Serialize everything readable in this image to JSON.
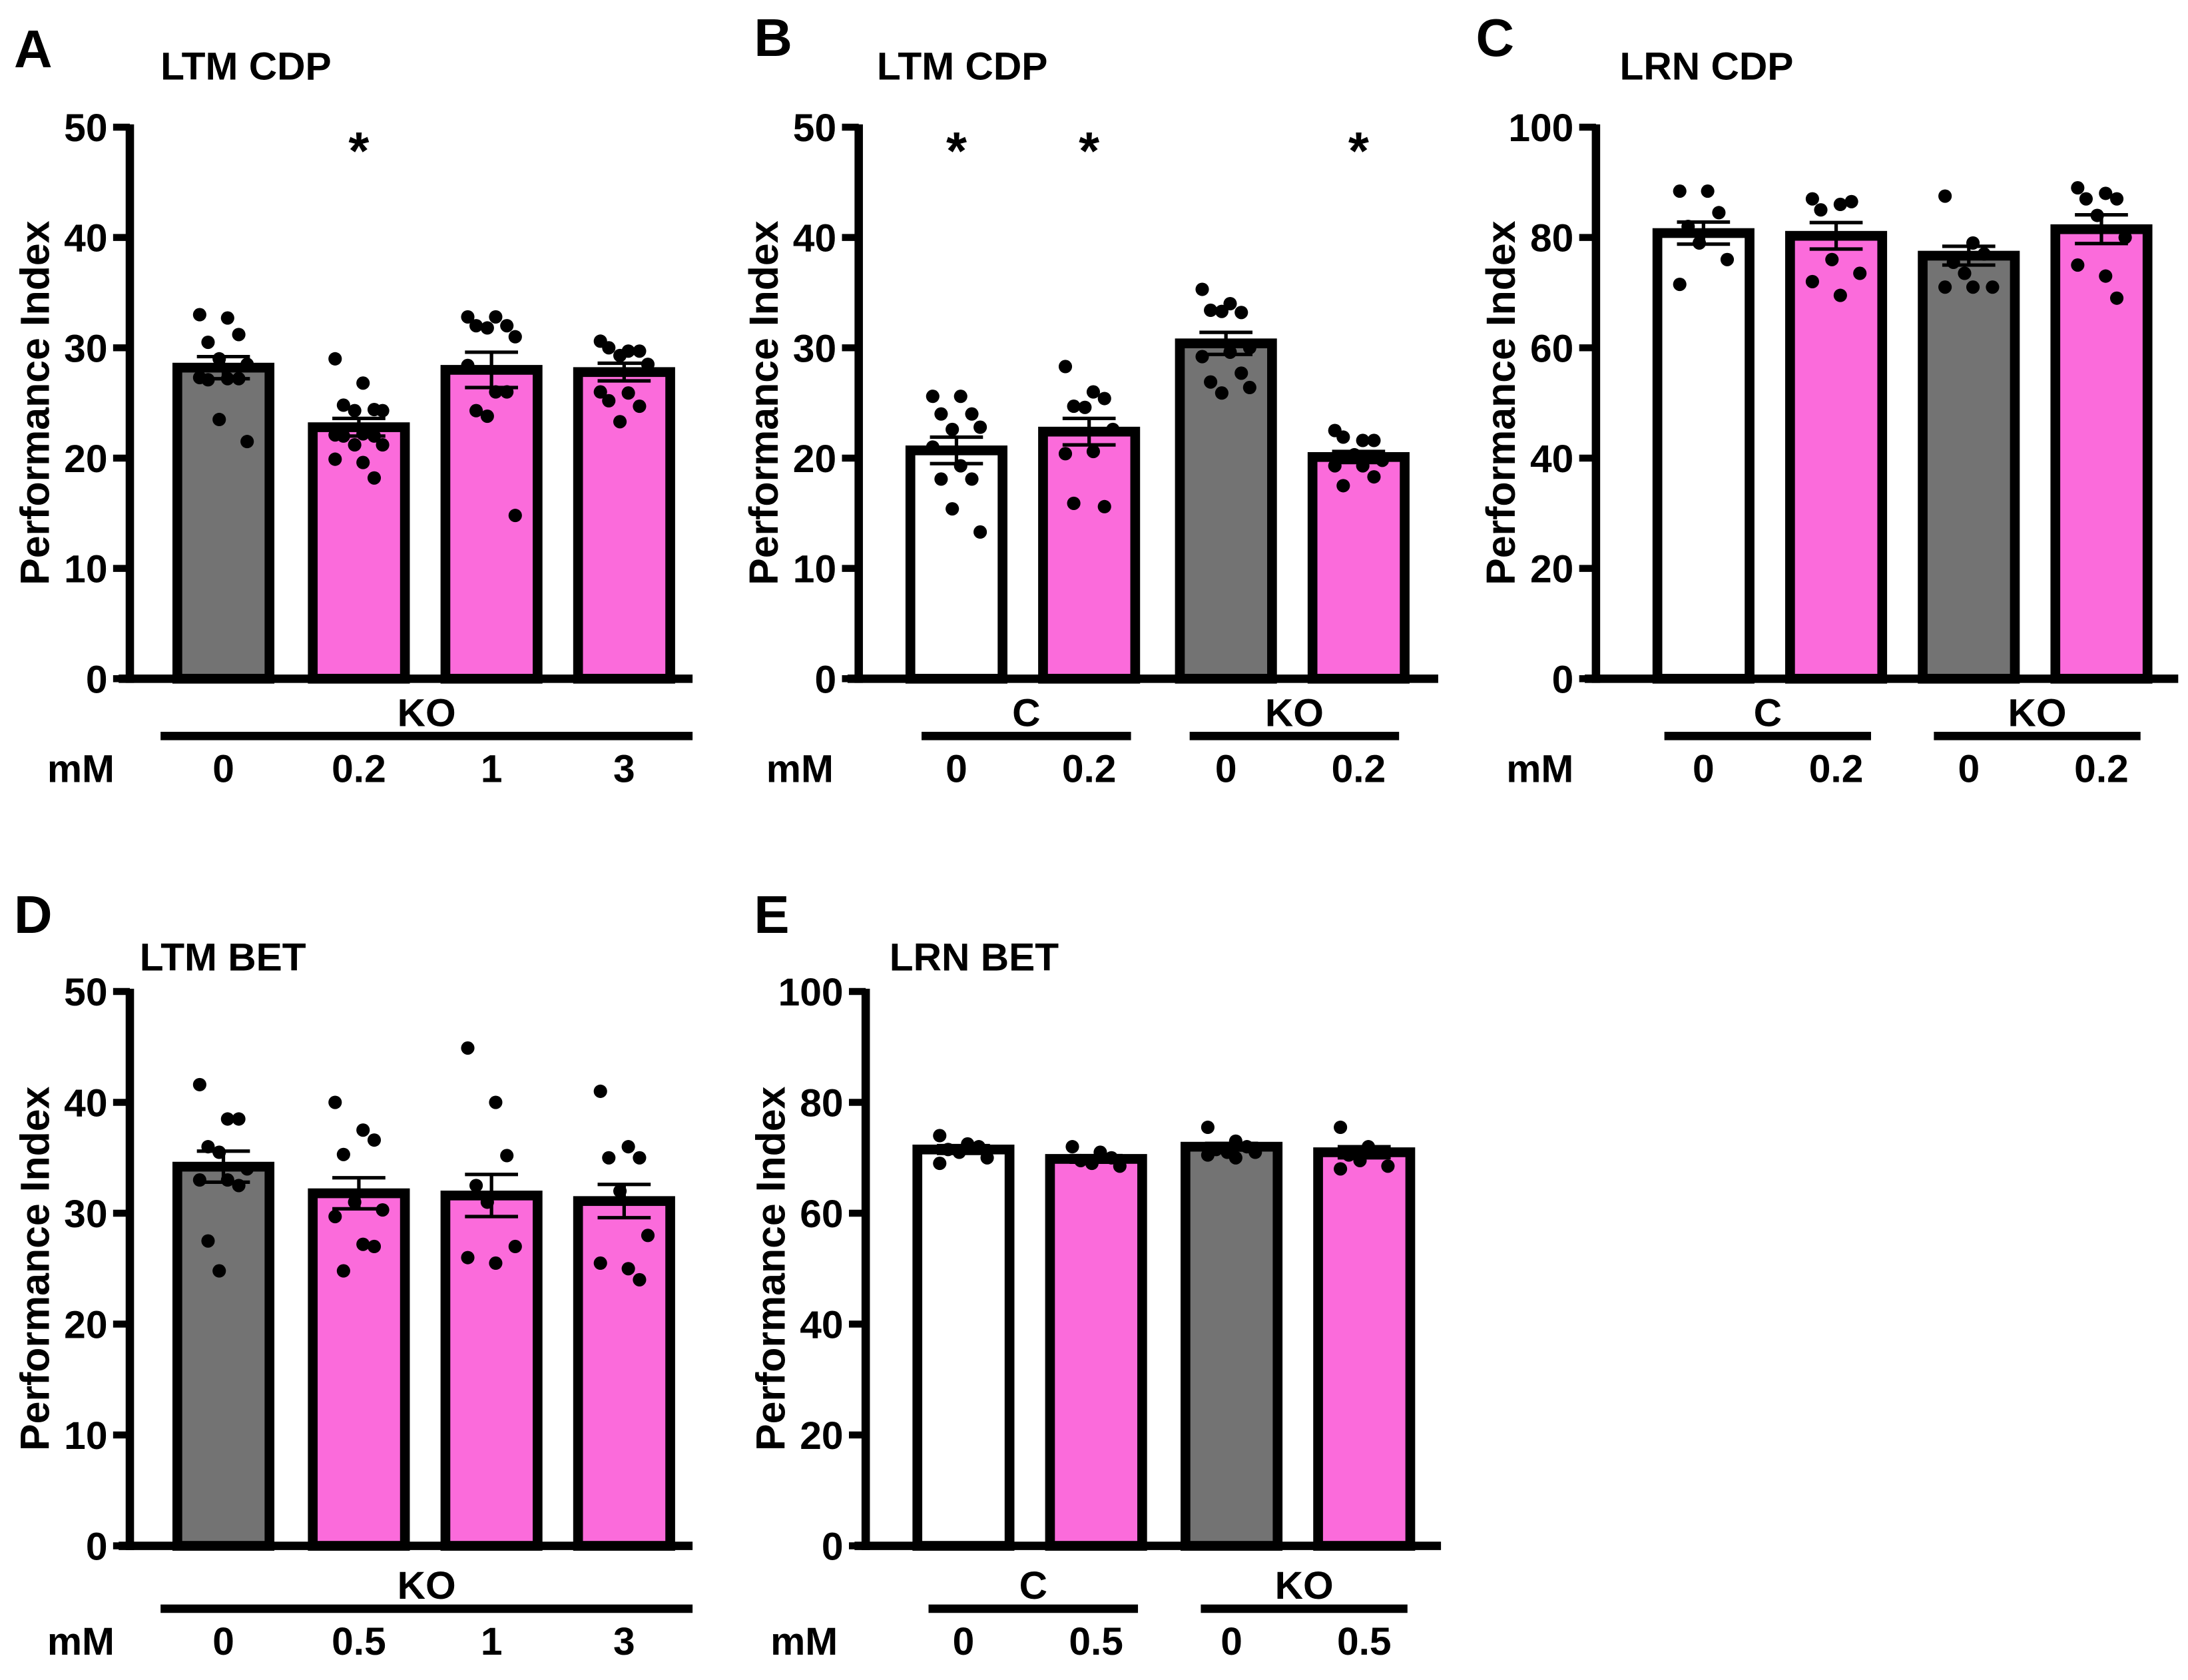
{
  "chart_data": [
    {
      "type": "bar",
      "panel": "A",
      "title": "LTM CDP",
      "ylabel": "Performance Index",
      "ylim": [
        0,
        50
      ],
      "ytick_step": 10,
      "unit_label": "mM",
      "categories": [
        "0",
        "0.2",
        "1",
        "3"
      ],
      "groups": [
        {
          "label": "KO",
          "bars": [
            0,
            3
          ]
        }
      ],
      "bars": [
        {
          "value": 28.2,
          "sem": 1.0,
          "color": "#737373",
          "sig": "",
          "points": [
            33,
            32.7,
            31.2,
            30.5,
            29,
            28.5,
            27.3,
            27.2,
            27.2,
            27.1,
            23.5,
            21.5
          ]
        },
        {
          "value": 22.8,
          "sem": 0.8,
          "color": "#FB6BDB",
          "sig": "*",
          "points": [
            29,
            26.8,
            24.4,
            24.8,
            24.3,
            24.3,
            22.1,
            22.2,
            22,
            22,
            21.2,
            21.2,
            19.9,
            19.6,
            18.2
          ]
        },
        {
          "value": 28.0,
          "sem": 1.6,
          "color": "#FB6BDB",
          "sig": "",
          "points": [
            32.8,
            32.8,
            32,
            32,
            31.8,
            31,
            28.4,
            26,
            26,
            24.3,
            23.8,
            14.8
          ]
        },
        {
          "value": 27.8,
          "sem": 0.8,
          "color": "#FB6BDB",
          "sig": "",
          "points": [
            30.6,
            29.7,
            29.7,
            30,
            29.3,
            28.5,
            26,
            25.9,
            24.7,
            25.2,
            23.3
          ]
        }
      ]
    },
    {
      "type": "bar",
      "panel": "B",
      "title": "LTM CDP",
      "ylabel": "Performance Index",
      "ylim": [
        0,
        50
      ],
      "ytick_step": 10,
      "unit_label": "mM",
      "categories": [
        "0",
        "0.2",
        "0",
        "0.2"
      ],
      "groups": [
        {
          "label": "C",
          "bars": [
            0,
            1
          ]
        },
        {
          "label": "KO",
          "bars": [
            2,
            3
          ]
        }
      ],
      "bars": [
        {
          "value": 20.7,
          "sem": 1.2,
          "color": "#FFFFFF",
          "sig": "*",
          "points": [
            25.6,
            25.6,
            24,
            24,
            22.6,
            22.8,
            21,
            19.3,
            18.1,
            18.1,
            15.4,
            13.3
          ]
        },
        {
          "value": 22.4,
          "sem": 1.2,
          "color": "#FB6BDB",
          "sig": "*",
          "points": [
            28.3,
            26,
            25.4,
            24.7,
            24.6,
            22.6,
            20.4,
            20.6,
            15.6,
            15.9
          ]
        },
        {
          "value": 30.4,
          "sem": 1.0,
          "color": "#737373",
          "sig": "",
          "points": [
            35.3,
            34,
            33.2,
            33.4,
            33.3,
            30,
            29.2,
            29.6,
            27.7,
            26.9,
            25.9,
            26.4
          ]
        },
        {
          "value": 20.1,
          "sem": 0.5,
          "color": "#FB6BDB",
          "sig": "*",
          "points": [
            22.5,
            21.6,
            21.6,
            21.9,
            20.3,
            19.8,
            19.3,
            19.3,
            18.3,
            17.5
          ]
        }
      ]
    },
    {
      "type": "bar",
      "panel": "C",
      "title": "LRN CDP",
      "ylabel": "Performance Index",
      "ylim": [
        0,
        100
      ],
      "ytick_step": 20,
      "unit_label": "mM",
      "categories": [
        "0",
        "0.2",
        "0",
        "0.2"
      ],
      "groups": [
        {
          "label": "C",
          "bars": [
            0,
            1
          ]
        },
        {
          "label": "KO",
          "bars": [
            2,
            3
          ]
        }
      ],
      "bars": [
        {
          "value": 80.8,
          "sem": 2.0,
          "color": "#FFFFFF",
          "sig": "",
          "points": [
            88.4,
            88.4,
            84.5,
            82,
            79,
            76,
            71.5
          ]
        },
        {
          "value": 80.3,
          "sem": 2.4,
          "color": "#FB6BDB",
          "sig": "",
          "points": [
            87,
            86,
            86.5,
            85,
            76,
            73.5,
            72,
            69.5
          ]
        },
        {
          "value": 76.7,
          "sem": 1.7,
          "color": "#737373",
          "sig": "",
          "points": [
            87.5,
            79,
            77,
            75.5,
            73.5,
            71,
            71,
            71
          ]
        },
        {
          "value": 81.5,
          "sem": 2.6,
          "color": "#FB6BDB",
          "sig": "",
          "points": [
            89,
            88,
            87,
            87,
            84,
            80,
            75,
            73,
            69
          ]
        }
      ]
    },
    {
      "type": "bar",
      "panel": "D",
      "title": "LTM BET",
      "ylabel": "Performance Index",
      "ylim": [
        0,
        50
      ],
      "ytick_step": 10,
      "unit_label": "mM",
      "categories": [
        "0",
        "0.5",
        "1",
        "3"
      ],
      "groups": [
        {
          "label": "KO",
          "bars": [
            0,
            3
          ]
        }
      ],
      "bars": [
        {
          "value": 34.2,
          "sem": 1.4,
          "color": "#737373",
          "sig": "",
          "points": [
            41.6,
            38.5,
            38.5,
            36,
            35.5,
            34,
            33,
            33,
            32.5,
            27.5,
            24.8
          ]
        },
        {
          "value": 31.8,
          "sem": 1.4,
          "color": "#FB6BDB",
          "sig": "",
          "points": [
            40,
            37.5,
            36.6,
            35.3,
            31,
            30.3,
            29.7,
            27.2,
            27,
            24.8
          ]
        },
        {
          "value": 31.6,
          "sem": 1.9,
          "color": "#FB6BDB",
          "sig": "",
          "points": [
            44.9,
            40,
            35.2,
            32.5,
            31,
            27,
            26,
            25.5
          ]
        },
        {
          "value": 31.1,
          "sem": 1.5,
          "color": "#FB6BDB",
          "sig": "",
          "points": [
            41,
            36,
            35,
            35,
            32,
            28,
            25.5,
            25,
            24
          ]
        }
      ]
    },
    {
      "type": "bar",
      "panel": "E",
      "title": "LRN BET",
      "ylabel": "Performance Index",
      "ylim": [
        0,
        100
      ],
      "ytick_step": 20,
      "unit_label": "mM",
      "categories": [
        "0",
        "0.5",
        "0",
        "0.5"
      ],
      "groups": [
        {
          "label": "C",
          "bars": [
            0,
            1
          ]
        },
        {
          "label": "KO",
          "bars": [
            2,
            3
          ]
        }
      ],
      "bars": [
        {
          "value": 71.5,
          "sem": 0.7,
          "color": "#FFFFFF",
          "sig": "",
          "points": [
            74,
            72.5,
            72,
            71.5,
            71,
            70,
            69
          ]
        },
        {
          "value": 69.8,
          "sem": 0.6,
          "color": "#FB6BDB",
          "sig": "",
          "points": [
            72,
            71,
            70,
            69.5,
            69,
            68.5
          ]
        },
        {
          "value": 72.0,
          "sem": 0.6,
          "color": "#737373",
          "sig": "",
          "points": [
            75.5,
            73,
            72,
            71.5,
            71,
            71,
            70.5,
            70
          ]
        },
        {
          "value": 71.0,
          "sem": 1.0,
          "color": "#FB6BDB",
          "sig": "",
          "points": [
            75.5,
            72,
            71,
            70.5,
            69.5,
            68.5,
            68
          ]
        }
      ]
    }
  ]
}
